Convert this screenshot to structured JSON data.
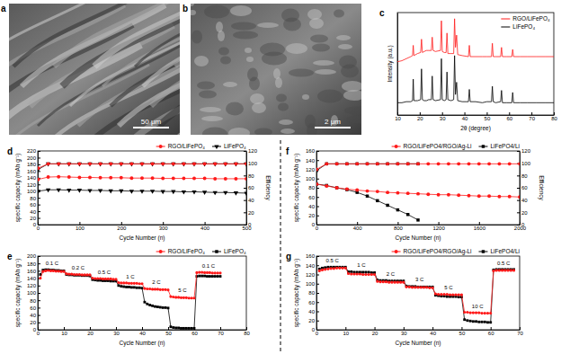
{
  "chart_data": [
    {
      "type": "line",
      "title": "c",
      "xlabel": "2θ (degree)",
      "ylabel": "Intensity (a.u.)",
      "x": [
        10,
        12,
        14,
        16,
        16.8,
        17.1,
        17.4,
        19,
        20.4,
        20.8,
        21.2,
        22,
        23,
        24,
        25.2,
        25.6,
        26,
        27,
        29.3,
        29.7,
        30.1,
        31,
        31.8,
        32.2,
        32.6,
        34,
        35.2,
        35.6,
        36,
        36.5,
        37,
        39,
        41.8,
        42.2,
        42.6,
        45,
        48,
        50,
        52.1,
        52.5,
        52.9,
        54,
        56.2,
        56.6,
        57,
        59,
        61.2,
        61.6,
        62,
        65,
        68,
        72,
        76,
        80
      ],
      "xlim": [
        10,
        80
      ],
      "xticks": [
        10,
        20,
        30,
        40,
        50,
        60,
        70,
        80
      ],
      "ylim": [
        0,
        100
      ],
      "tick_labels": "x",
      "legend": "top-right",
      "series": [
        {
          "name": "RGO/LiFePO₄",
          "color": "#ff1a1a",
          "marker": "none",
          "values": [
            52,
            53,
            55,
            57,
            58,
            68,
            58,
            60,
            61,
            74,
            61,
            62,
            63,
            63,
            63,
            76,
            63,
            62,
            63,
            92,
            62,
            61,
            61,
            80,
            60,
            60,
            60,
            94,
            66,
            78,
            59,
            58,
            57,
            68,
            57,
            57,
            57,
            57,
            57,
            70,
            57,
            57,
            57,
            66,
            57,
            57,
            57,
            64,
            57,
            57,
            57,
            57,
            57,
            57
          ]
        },
        {
          "name": "LiFePO₄",
          "color": "#000000",
          "marker": "none",
          "values": [
            12,
            12,
            13,
            13,
            14,
            35,
            14,
            14,
            15,
            45,
            15,
            14,
            14,
            15,
            15,
            38,
            15,
            14,
            15,
            55,
            15,
            14,
            15,
            42,
            15,
            14,
            15,
            58,
            20,
            32,
            14,
            13,
            13,
            25,
            13,
            13,
            12,
            13,
            13,
            28,
            13,
            12,
            13,
            24,
            12,
            12,
            12,
            22,
            12,
            12,
            12,
            12,
            12,
            12
          ]
        }
      ]
    },
    {
      "type": "line",
      "title": "d",
      "xlabel": "Cycle Number (n)",
      "ylabel": "specific capacity (mAh g⁻¹)",
      "y2label": "Efficiency",
      "x": [
        1,
        25,
        50,
        75,
        100,
        125,
        150,
        175,
        200,
        225,
        250,
        275,
        300,
        325,
        350,
        375,
        400,
        425,
        450,
        475,
        500
      ],
      "xlim": [
        0,
        500
      ],
      "xticks": [
        0,
        100,
        200,
        300,
        400,
        500
      ],
      "ylim": [
        0,
        220
      ],
      "yticks": [
        0,
        20,
        40,
        60,
        80,
        100,
        120,
        140,
        160,
        180,
        200,
        220
      ],
      "y2lim": [
        0,
        120
      ],
      "y2ticks": [
        0,
        20,
        40,
        60,
        80,
        100,
        120
      ],
      "legend": "top",
      "series": [
        {
          "name": "RGO/LiFePO₄",
          "color": "#ff1a1a",
          "marker": "circle",
          "values": [
            135,
            142,
            143,
            142,
            141,
            141,
            140,
            140,
            140,
            139,
            139,
            139,
            138,
            138,
            138,
            138,
            138,
            137,
            137,
            137,
            137
          ],
          "efficiency": [
            92,
            99,
            99,
            99,
            99,
            99,
            99,
            99,
            99,
            99,
            99,
            99,
            99,
            99,
            99,
            99,
            99,
            99,
            99,
            99,
            99
          ]
        },
        {
          "name": "LiFePO₄",
          "color": "#000000",
          "marker": "triangle-down",
          "values": [
            100,
            104,
            104,
            103,
            103,
            102,
            102,
            101,
            101,
            100,
            100,
            100,
            99,
            99,
            98,
            98,
            97,
            96,
            96,
            95,
            94
          ],
          "efficiency": [
            90,
            99,
            99,
            99,
            99,
            99,
            99,
            99,
            99,
            99,
            99,
            99,
            99,
            99,
            99,
            99,
            99,
            99,
            99,
            99,
            99
          ]
        }
      ]
    },
    {
      "type": "line",
      "title": "e",
      "xlabel": "Cycle Number (n)",
      "ylabel": "specific capacity (mAh g⁻¹)",
      "x": [
        1,
        2,
        3,
        4,
        5,
        6,
        7,
        8,
        9,
        10,
        11,
        12,
        13,
        14,
        15,
        16,
        17,
        18,
        19,
        20,
        21,
        22,
        23,
        24,
        25,
        26,
        27,
        28,
        29,
        30,
        31,
        32,
        33,
        34,
        35,
        36,
        37,
        38,
        39,
        40,
        41,
        42,
        43,
        44,
        45,
        46,
        47,
        48,
        49,
        50,
        51,
        52,
        53,
        54,
        55,
        56,
        57,
        58,
        59,
        60,
        61,
        62,
        63,
        64,
        65,
        66,
        67,
        68,
        69,
        70
      ],
      "xlim": [
        0,
        80
      ],
      "xticks": [
        0,
        10,
        20,
        30,
        40,
        50,
        60,
        70,
        80
      ],
      "ylim": [
        0,
        200
      ],
      "yticks": [
        0,
        20,
        40,
        60,
        80,
        100,
        120,
        140,
        160,
        180,
        200
      ],
      "legend": "top",
      "annotations": [
        "0.1 C",
        "0.2 C",
        "0.5 C",
        "1 C",
        "2 C",
        "5 C",
        "0.1 C"
      ],
      "series": [
        {
          "name": "RGO/LiFePO₄",
          "color": "#ff1a1a",
          "marker": "circle",
          "values": [
            140,
            158,
            160,
            161,
            160,
            160,
            159,
            159,
            158,
            158,
            152,
            151,
            151,
            150,
            150,
            150,
            149,
            149,
            149,
            149,
            140,
            139,
            139,
            139,
            138,
            138,
            138,
            138,
            137,
            137,
            128,
            127,
            127,
            127,
            126,
            126,
            126,
            126,
            125,
            125,
            112,
            111,
            111,
            110,
            110,
            110,
            109,
            109,
            109,
            108,
            90,
            89,
            88,
            88,
            87,
            87,
            87,
            86,
            86,
            86,
            155,
            156,
            156,
            155,
            155,
            155,
            154,
            154,
            154,
            154
          ]
        },
        {
          "name": "LiFePO₄",
          "color": "#000000",
          "marker": "square",
          "values": [
            150,
            162,
            163,
            163,
            162,
            162,
            161,
            161,
            160,
            160,
            150,
            149,
            149,
            148,
            148,
            148,
            147,
            147,
            147,
            146,
            136,
            135,
            134,
            134,
            133,
            133,
            133,
            132,
            132,
            132,
            120,
            118,
            117,
            116,
            116,
            115,
            115,
            114,
            114,
            113,
            75,
            70,
            67,
            65,
            63,
            62,
            61,
            60,
            60,
            59,
            8,
            6,
            5,
            5,
            4,
            4,
            4,
            4,
            4,
            4,
            145,
            146,
            146,
            146,
            145,
            145,
            145,
            145,
            145,
            145
          ]
        }
      ]
    },
    {
      "type": "line",
      "title": "f",
      "xlabel": "Cycle Number (n)",
      "ylabel": "specific capacity (mAh g⁻¹)",
      "y2label": "Efficiency",
      "x": [
        1,
        100,
        200,
        300,
        400,
        500,
        600,
        700,
        800,
        900,
        1000,
        1100,
        1200,
        1300,
        1400,
        1500,
        1600,
        1700,
        1800,
        1900,
        2000
      ],
      "xlim": [
        0,
        2000
      ],
      "xticks": [
        0,
        400,
        800,
        1200,
        1600,
        2000
      ],
      "ylim": [
        0,
        160
      ],
      "yticks": [
        0,
        20,
        40,
        60,
        80,
        100,
        120,
        140,
        160
      ],
      "y2lim": [
        0,
        120
      ],
      "y2ticks": [
        0,
        20,
        40,
        60,
        80,
        100,
        120
      ],
      "legend": "top",
      "series": [
        {
          "name": "RGO/LiFePO4/RGO/Ag-Li",
          "color": "#ff1a1a",
          "marker": "circle",
          "values": [
            88,
            84,
            80,
            77,
            75,
            73,
            72,
            70,
            69,
            68,
            67,
            66,
            65,
            65,
            64,
            63,
            62,
            62,
            61,
            61,
            60
          ],
          "efficiency": [
            90,
            99,
            99,
            99,
            99,
            99,
            99,
            99,
            99,
            99,
            99,
            99,
            99,
            99,
            99,
            99,
            99,
            99,
            99,
            99,
            99
          ]
        },
        {
          "name": "LiFePO4/Li",
          "color": "#000000",
          "marker": "square",
          "values": [
            88,
            85,
            80,
            76,
            70,
            62,
            52,
            42,
            32,
            22,
            10,
            null,
            null,
            null,
            null,
            null,
            null,
            null,
            null,
            null,
            null
          ],
          "efficiency": [
            88,
            99,
            99,
            99,
            99,
            99,
            99,
            99,
            99,
            99,
            99,
            null,
            null,
            null,
            null,
            null,
            null,
            null,
            null,
            null,
            null
          ]
        }
      ]
    },
    {
      "type": "line",
      "title": "g",
      "xlabel": "Cycle Number (n)",
      "ylabel": "specific capacity (mAh g⁻¹)",
      "x": [
        1,
        2,
        3,
        4,
        5,
        6,
        7,
        8,
        9,
        10,
        11,
        12,
        13,
        14,
        15,
        16,
        17,
        18,
        19,
        20,
        21,
        22,
        23,
        24,
        25,
        26,
        27,
        28,
        29,
        30,
        31,
        32,
        33,
        34,
        35,
        36,
        37,
        38,
        39,
        40,
        41,
        42,
        43,
        44,
        45,
        46,
        47,
        48,
        49,
        50,
        51,
        52,
        53,
        54,
        55,
        56,
        57,
        58,
        59,
        60,
        61,
        62,
        63,
        64,
        65,
        66,
        67,
        68
      ],
      "xlim": [
        0,
        70
      ],
      "xticks": [
        0,
        10,
        20,
        30,
        40,
        50,
        60,
        70
      ],
      "ylim": [
        0,
        160
      ],
      "yticks": [
        0,
        20,
        40,
        60,
        80,
        100,
        120,
        140,
        160
      ],
      "legend": "top",
      "annotations": [
        "0.5 C",
        "1 C",
        "2 C",
        "3 C",
        "5 C",
        "10 C",
        "0.5 C"
      ],
      "series": [
        {
          "name": "RGO/LiFePO4/RGO/Ag-Li",
          "color": "#ff1a1a",
          "marker": "circle",
          "values": [
            128,
            130,
            131,
            132,
            133,
            133,
            134,
            134,
            134,
            134,
            122,
            121,
            121,
            121,
            121,
            120,
            120,
            120,
            120,
            120,
            105,
            104,
            104,
            104,
            103,
            103,
            103,
            103,
            103,
            103,
            93,
            93,
            92,
            92,
            92,
            92,
            92,
            92,
            91,
            91,
            78,
            77,
            77,
            77,
            77,
            76,
            76,
            76,
            76,
            76,
            38,
            38,
            37,
            37,
            37,
            37,
            36,
            36,
            36,
            36,
            128,
            129,
            129,
            129,
            129,
            129,
            129,
            129
          ]
        },
        {
          "name": "LiFePO4/Li",
          "color": "#000000",
          "marker": "square",
          "values": [
            132,
            134,
            135,
            136,
            136,
            136,
            136,
            136,
            136,
            136,
            126,
            126,
            125,
            125,
            125,
            125,
            125,
            125,
            124,
            124,
            108,
            107,
            107,
            107,
            106,
            106,
            106,
            106,
            106,
            106,
            95,
            94,
            94,
            94,
            93,
            93,
            93,
            93,
            93,
            93,
            75,
            74,
            73,
            73,
            72,
            72,
            72,
            72,
            71,
            71,
            22,
            20,
            19,
            18,
            18,
            17,
            17,
            17,
            16,
            16,
            130,
            131,
            131,
            131,
            131,
            131,
            131,
            131
          ]
        }
      ]
    }
  ],
  "images": [
    {
      "title": "a",
      "scale_bar": "50 μm"
    },
    {
      "title": "b",
      "scale_bar": "2 μm"
    }
  ]
}
